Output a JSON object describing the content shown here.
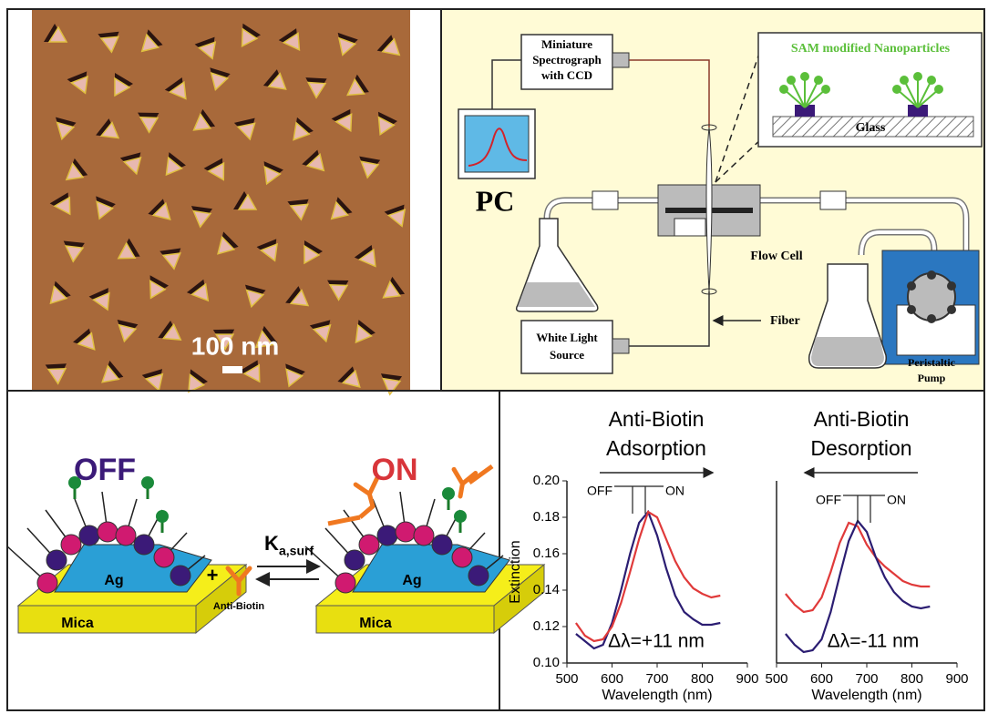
{
  "afm": {
    "scale_label": "100 nm"
  },
  "setup": {
    "spectrograph": [
      "Miniature",
      "Spectrograph",
      "with CCD"
    ],
    "pc": "PC",
    "inset_title": "SAM modified Nanoparticles",
    "glass": "Glass",
    "flow_cell": "Flow Cell",
    "fiber": "Fiber",
    "light_source": [
      "White Light",
      "Source"
    ],
    "pump": [
      "Peristaltic",
      "Pump"
    ]
  },
  "scheme": {
    "off": "OFF",
    "on": "ON",
    "ag_left": "Ag",
    "ag_right": "Ag",
    "mica_left": "Mica",
    "mica_right": "Mica",
    "plus": "+",
    "rate": "K",
    "rate_sub": "a,surf",
    "antibody": "Anti-Biotin"
  },
  "chart_data": [
    {
      "type": "line",
      "title": [
        "Anti-Biotin",
        "Adsorption"
      ],
      "x_label": "Wavelength (nm)",
      "y_label": "Extinction",
      "x": [
        520,
        540,
        560,
        580,
        600,
        620,
        640,
        660,
        680,
        700,
        720,
        740,
        760,
        780,
        800,
        820,
        840
      ],
      "series": [
        {
          "name": "OFF",
          "color": "#2b1d72",
          "values": [
            0.116,
            0.112,
            0.108,
            0.11,
            0.122,
            0.14,
            0.16,
            0.177,
            0.183,
            0.17,
            0.152,
            0.137,
            0.128,
            0.124,
            0.121,
            0.121,
            0.122
          ]
        },
        {
          "name": "ON",
          "color": "#e03a3a",
          "values": [
            0.122,
            0.115,
            0.112,
            0.113,
            0.12,
            0.133,
            0.15,
            0.168,
            0.183,
            0.18,
            0.168,
            0.156,
            0.147,
            0.141,
            0.138,
            0.136,
            0.137
          ]
        }
      ],
      "annotation": "Δλ=+11 nm",
      "xlim": [
        500,
        900
      ],
      "xticks": [
        500,
        600,
        700,
        800,
        900
      ],
      "ylim": [
        0.1,
        0.2
      ],
      "yticks": [
        {
          "value": 0.1,
          "label": "0.10"
        },
        0.12,
        0.14,
        0.16,
        0.18,
        {
          "value": 0.2,
          "label": "0.20"
        }
      ]
    },
    {
      "type": "line",
      "title": [
        "Anti-Biotin",
        "Desorption"
      ],
      "x_label": "Wavelength (nm)",
      "x": [
        520,
        540,
        560,
        580,
        600,
        620,
        640,
        660,
        680,
        700,
        720,
        740,
        760,
        780,
        800,
        820,
        840
      ],
      "series": [
        {
          "name": "OFF",
          "color": "#e03a3a",
          "values": [
            0.138,
            0.132,
            0.128,
            0.129,
            0.136,
            0.15,
            0.166,
            0.177,
            0.175,
            0.165,
            0.158,
            0.153,
            0.149,
            0.145,
            0.143,
            0.142,
            0.142
          ]
        },
        {
          "name": "ON",
          "color": "#2b1d72",
          "values": [
            0.116,
            0.11,
            0.106,
            0.107,
            0.113,
            0.128,
            0.148,
            0.167,
            0.178,
            0.172,
            0.158,
            0.147,
            0.139,
            0.134,
            0.131,
            0.13,
            0.131
          ]
        }
      ],
      "annotation": "Δλ=-11 nm",
      "xlim": [
        500,
        900
      ],
      "xticks": [
        500,
        600,
        700,
        800,
        900
      ],
      "ylim": [
        0.1,
        0.2
      ]
    }
  ]
}
